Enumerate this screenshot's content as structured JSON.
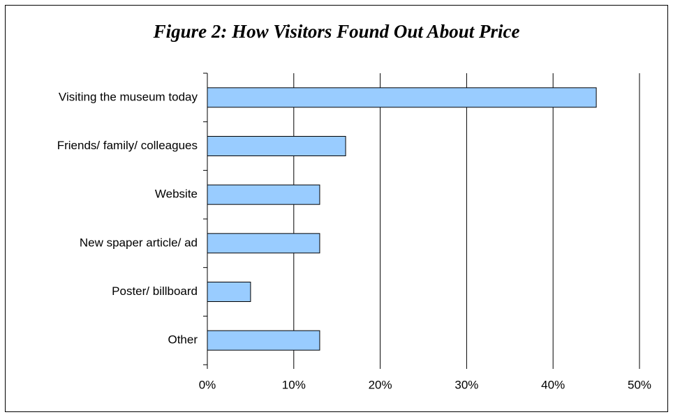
{
  "chart_data": {
    "type": "bar",
    "orientation": "horizontal",
    "title": "Figure 2: How Visitors Found Out About Price",
    "categories": [
      "Visiting the museum today",
      "Friends/ family/ colleagues",
      "Website",
      "New spaper article/ ad",
      "Poster/ billboard",
      "Other"
    ],
    "values": [
      45,
      16,
      13,
      13,
      5,
      13
    ],
    "color": "#99ccff",
    "xlim": [
      0,
      50
    ],
    "xticks": [
      {
        "value": 0,
        "label": "0%"
      },
      {
        "value": 10,
        "label": "10%"
      },
      {
        "value": 20,
        "label": "20%"
      },
      {
        "value": 30,
        "label": "30%"
      },
      {
        "value": 40,
        "label": "40%"
      },
      {
        "value": 50,
        "label": "50%"
      }
    ],
    "grid": true
  }
}
